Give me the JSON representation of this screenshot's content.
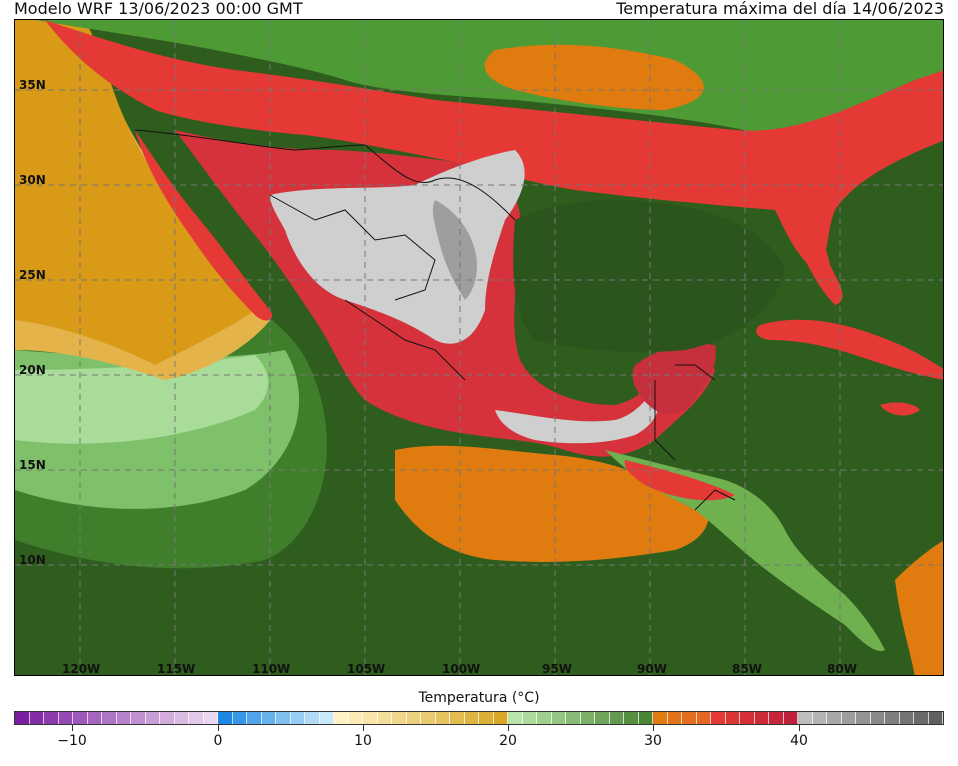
{
  "header": {
    "left_title": "Modelo WRF    13/06/2023 00:00 GMT",
    "right_title": "Temperatura máxima del día 14/06/2023"
  },
  "map": {
    "latitude_labels": [
      "35N",
      "30N",
      "25N",
      "20N",
      "15N",
      "10N"
    ],
    "longitude_labels": [
      "120W",
      "115W",
      "110W",
      "105W",
      "100W",
      "95W",
      "90W",
      "85W",
      "80W"
    ]
  },
  "colorbar": {
    "title": "Temperatura (°C)",
    "tick_labels": [
      "−10",
      "0",
      "10",
      "20",
      "30",
      "40"
    ],
    "tick_values": [
      -10,
      0,
      10,
      20,
      30,
      40
    ],
    "min": -14,
    "max": 50,
    "step": 1,
    "colors": {
      "purple_range": "#7b1fa2",
      "blue_range": "#1e88e5",
      "light_range": "#fff3c4",
      "yellow_range": "#d4a017",
      "green_range": "#3c7a28",
      "orange_range": "#e07b10",
      "red_range": "#e53935",
      "gray_range": "#bdbdbd"
    }
  }
}
